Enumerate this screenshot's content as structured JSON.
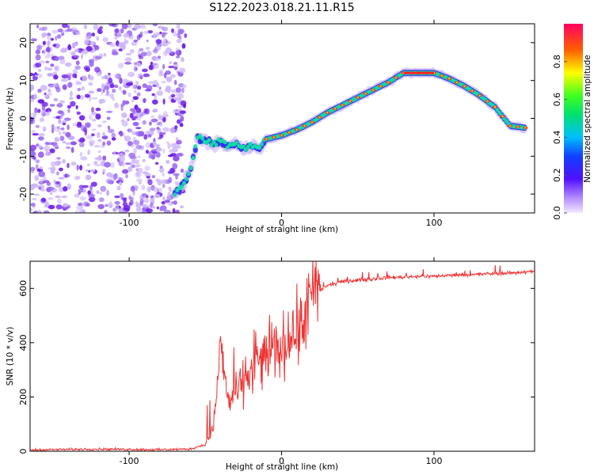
{
  "title": "S122.2023.018.21.11.R15",
  "chart_data": [
    {
      "type": "heatmap",
      "xlabel": "Height of straight line (km)",
      "ylabel": "Frequency (Hz)",
      "xlim": [
        -165,
        166
      ],
      "ylim": [
        -25,
        25
      ],
      "xticks": [
        -100,
        0,
        100
      ],
      "yticks": [
        -20,
        -10,
        0,
        10,
        20
      ],
      "colorbar": {
        "label": "Normalized spectral amplitude",
        "range": [
          0,
          1
        ],
        "ticks": [
          0.0,
          0.2,
          0.4,
          0.6,
          0.8
        ]
      },
      "noise_region_x": [
        -165,
        -65
      ],
      "ridge": {
        "x": [
          -70,
          -65,
          -60,
          -55,
          -50,
          -45,
          -40,
          -35,
          -30,
          -25,
          -20,
          -15,
          -10,
          0,
          10,
          20,
          30,
          40,
          50,
          60,
          70,
          80,
          90,
          100,
          110,
          120,
          130,
          140,
          150,
          160
        ],
        "y": [
          -20,
          -17.5,
          -14,
          -5,
          -6,
          -7,
          -6,
          -7.5,
          -6.5,
          -8,
          -7,
          -8,
          -5.5,
          -4.5,
          -3,
          -1,
          1.5,
          3.5,
          5.5,
          7.5,
          9.5,
          12,
          12,
          12,
          10.5,
          8.5,
          6,
          3,
          -2,
          -2.5
        ]
      },
      "grid": false
    },
    {
      "type": "line",
      "xlabel": "Height of straight line (km)",
      "ylabel": "SNR (10 * v/v)",
      "xlim": [
        -165,
        166
      ],
      "ylim": [
        0,
        700
      ],
      "xticks": [
        -100,
        0,
        100
      ],
      "yticks": [
        0,
        200,
        400,
        600
      ],
      "color": "#ee3333",
      "series": [
        {
          "x": [
            -165,
            -120,
            -80,
            -60,
            -50,
            -45,
            -42,
            -40,
            -38,
            -35,
            -30,
            -25,
            -20,
            -15,
            -10,
            -5,
            0,
            5,
            10,
            15,
            20,
            25,
            30,
            40,
            50,
            60,
            70,
            80,
            90,
            100,
            110,
            120,
            130,
            140,
            150,
            160,
            166
          ],
          "y": [
            5,
            8,
            6,
            8,
            25,
            80,
            250,
            420,
            300,
            180,
            220,
            260,
            300,
            330,
            360,
            380,
            380,
            420,
            450,
            500,
            560,
            590,
            610,
            625,
            630,
            635,
            640,
            642,
            645,
            645,
            648,
            650,
            652,
            655,
            657,
            660,
            662
          ]
        }
      ],
      "grid": false
    }
  ]
}
